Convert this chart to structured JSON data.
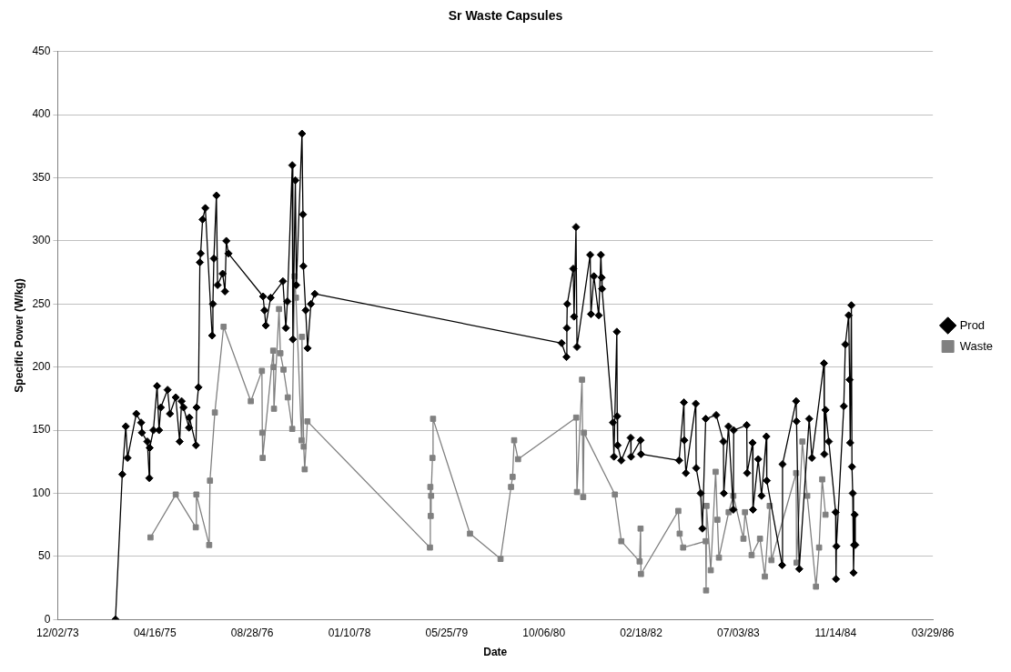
{
  "chart_data": {
    "type": "line",
    "title": "Sr Waste Capsules",
    "xlabel": "Date",
    "ylabel": "Specific Power (W/kg)",
    "xlim": [
      "1973-12-02",
      "1986-03-29"
    ],
    "xticks": [
      {
        "value": "1973-12-02",
        "label": "12/02/73"
      },
      {
        "value": "1975-04-16",
        "label": "04/16/75"
      },
      {
        "value": "1976-08-28",
        "label": "08/28/76"
      },
      {
        "value": "1978-01-10",
        "label": "01/10/78"
      },
      {
        "value": "1979-05-25",
        "label": "05/25/79"
      },
      {
        "value": "1980-10-06",
        "label": "10/06/80"
      },
      {
        "value": "1982-02-18",
        "label": "02/18/82"
      },
      {
        "value": "1983-07-03",
        "label": "07/03/83"
      },
      {
        "value": "1984-11-14",
        "label": "11/14/84"
      },
      {
        "value": "1986-03-29",
        "label": "03/29/86"
      }
    ],
    "ylim": [
      0,
      450
    ],
    "yticks": [
      0,
      50,
      100,
      150,
      200,
      250,
      300,
      350,
      400,
      450
    ],
    "grid": "y",
    "legend": "right",
    "series": [
      {
        "name": "Prod",
        "color": "#000000",
        "marker": "diamond",
        "x": [
          "1974-09-25",
          "1974-10-30",
          "1974-11-17",
          "1974-11-26",
          "1975-01-10",
          "1975-02-04",
          "1975-02-08",
          "1975-03-08",
          "1975-03-18",
          "1975-03-20",
          "1975-04-08",
          "1975-04-27",
          "1975-05-07",
          "1975-05-16",
          "1975-06-20",
          "1975-07-02",
          "1975-08-01",
          "1975-08-21",
          "1975-08-31",
          "1975-09-10",
          "1975-10-08",
          "1975-10-10",
          "1975-11-13",
          "1975-11-16",
          "1975-11-26",
          "1975-12-03",
          "1975-12-07",
          "1975-12-17",
          "1975-12-31",
          "1976-02-04",
          "1976-02-08",
          "1976-02-13",
          "1976-02-26",
          "1976-03-03",
          "1976-03-29",
          "1976-04-10",
          "1976-04-17",
          "1976-04-28",
          "1976-10-23",
          "1976-10-30",
          "1976-11-06",
          "1976-12-01",
          "1977-02-02",
          "1977-02-17",
          "1977-02-25",
          "1977-03-22",
          "1977-03-25",
          "1977-04-07",
          "1977-04-12",
          "1977-05-11",
          "1977-05-16",
          "1977-05-18",
          "1977-05-30",
          "1977-06-09",
          "1977-06-26",
          "1977-07-16",
          "1981-01-05",
          "1981-01-30",
          "1981-02-01",
          "1981-02-03",
          "1981-03-06",
          "1981-03-10",
          "1981-03-20",
          "1981-03-25",
          "1981-06-01",
          "1981-06-05",
          "1981-06-20",
          "1981-07-15",
          "1981-07-26",
          "1981-07-30",
          "1981-08-01",
          "1981-09-26",
          "1981-10-01",
          "1981-10-16",
          "1981-10-18",
          "1981-10-20",
          "1981-11-08",
          "1981-12-26",
          "1981-12-28",
          "1982-02-15",
          "1982-02-17",
          "1982-09-01",
          "1982-09-26",
          "1982-09-28",
          "1982-10-06",
          "1982-11-26",
          "1982-11-28",
          "1982-12-21",
          "1982-12-30",
          "1983-01-16",
          "1983-03-11",
          "1983-04-17",
          "1983-04-19",
          "1983-05-13",
          "1983-06-07",
          "1983-06-09",
          "1983-08-15",
          "1983-08-17",
          "1983-09-14",
          "1983-09-16",
          "1983-10-13",
          "1983-10-30",
          "1983-11-24",
          "1983-11-26",
          "1984-02-13",
          "1984-02-15",
          "1984-04-25",
          "1984-04-27",
          "1984-05-11",
          "1984-07-01",
          "1984-07-15",
          "1984-09-15",
          "1984-09-17",
          "1984-09-23",
          "1984-10-10",
          "1984-11-14",
          "1984-11-16",
          "1984-11-18",
          "1984-12-26",
          "1985-01-03",
          "1985-01-20",
          "1985-01-25",
          "1985-01-28",
          "1985-02-03",
          "1985-02-06",
          "1985-02-10",
          "1985-02-14",
          "1985-02-17",
          "1985-02-20",
          "1985-02-23"
        ],
        "values": [
          0,
          115,
          153,
          128,
          163,
          156,
          148,
          141,
          112,
          136,
          150,
          185,
          150,
          168,
          182,
          163,
          176,
          141,
          173,
          168,
          152,
          160,
          138,
          168,
          184,
          283,
          290,
          317,
          326,
          225,
          250,
          286,
          336,
          265,
          274,
          260,
          300,
          290,
          256,
          245,
          233,
          255,
          268,
          231,
          252,
          360,
          222,
          348,
          265,
          385,
          321,
          280,
          245,
          215,
          250,
          258,
          219,
          208,
          231,
          250,
          278,
          240,
          311,
          216,
          289,
          242,
          272,
          241,
          289,
          271,
          262,
          156,
          129,
          228,
          161,
          138,
          126,
          144,
          129,
          142,
          131,
          126,
          172,
          142,
          116,
          171,
          120,
          100,
          72,
          159,
          162,
          141,
          100,
          153,
          87,
          150,
          154,
          116,
          140,
          87,
          127,
          98,
          145,
          110,
          43,
          123,
          173,
          157,
          40,
          159,
          128,
          203,
          131,
          166,
          141,
          85,
          32,
          58,
          169,
          218,
          241,
          190,
          140,
          249,
          121,
          100,
          37,
          59,
          83,
          59
        ]
      },
      {
        "name": "Waste",
        "color": "#808080",
        "marker": "square",
        "x": [
          "1975-03-24",
          "1975-08-01",
          "1975-11-12",
          "1975-11-15",
          "1976-01-20",
          "1976-01-24",
          "1976-02-18",
          "1976-04-03",
          "1976-08-21",
          "1976-10-17",
          "1976-10-19",
          "1976-10-21",
          "1976-12-14",
          "1976-12-16",
          "1976-12-18",
          "1977-01-13",
          "1977-01-20",
          "1977-02-05",
          "1977-02-27",
          "1977-03-22",
          "1977-04-03",
          "1977-04-10",
          "1977-05-09",
          "1977-05-11",
          "1977-05-20",
          "1977-05-25",
          "1977-06-08",
          "1979-02-28",
          "1979-03-02",
          "1979-03-04",
          "1979-03-06",
          "1979-03-13",
          "1979-03-16",
          "1979-09-22",
          "1980-02-26",
          "1980-04-20",
          "1980-04-28",
          "1980-05-06",
          "1980-05-26",
          "1981-03-21",
          "1981-03-25",
          "1981-04-20",
          "1981-04-26",
          "1981-04-30",
          "1981-10-06",
          "1981-11-08",
          "1982-02-10",
          "1982-02-15",
          "1982-02-17",
          "1982-08-28",
          "1982-09-04",
          "1982-09-22",
          "1983-01-16",
          "1983-01-18",
          "1983-01-20",
          "1983-02-11",
          "1983-03-08",
          "1983-03-17",
          "1983-03-25",
          "1983-05-14",
          "1983-06-07",
          "1983-07-29",
          "1983-08-06",
          "1983-09-09",
          "1983-10-22",
          "1983-11-16",
          "1983-12-11",
          "1983-12-20",
          "1984-04-25",
          "1984-04-27",
          "1984-05-27",
          "1984-06-21",
          "1984-08-05",
          "1984-08-21",
          "1984-09-06",
          "1984-09-23"
        ],
        "values": [
          65,
          99,
          73,
          99,
          59,
          110,
          164,
          232,
          173,
          197,
          148,
          128,
          213,
          200,
          167,
          246,
          211,
          198,
          176,
          151,
          272,
          255,
          142,
          224,
          137,
          119,
          157,
          57,
          105,
          82,
          98,
          128,
          159,
          68,
          48,
          105,
          113,
          142,
          127,
          160,
          101,
          190,
          97,
          148,
          99,
          62,
          46,
          72,
          36,
          86,
          68,
          57,
          62,
          23,
          90,
          39,
          117,
          79,
          49,
          85,
          98,
          64,
          85,
          51,
          64,
          34,
          90,
          47,
          116,
          45,
          141,
          98,
          26,
          57,
          111,
          83
        ]
      }
    ]
  }
}
